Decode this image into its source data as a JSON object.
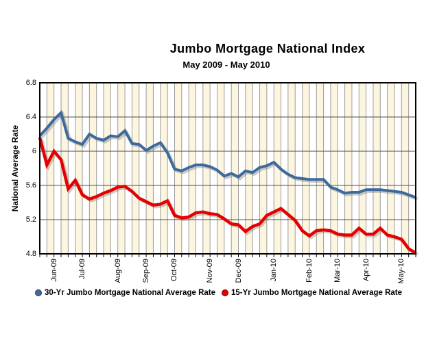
{
  "title": "Jumbo Mortgage National Index",
  "subtitle": "May 2009 - May 2010",
  "y_axis": {
    "label": "National Average Rate",
    "ticks": [
      {
        "label": "6.8",
        "value": 6.8
      },
      {
        "label": "6.4",
        "value": 6.4
      },
      {
        "label": "6",
        "value": 6.0
      },
      {
        "label": "5.6",
        "value": 5.6
      },
      {
        "label": "5.2",
        "value": 5.2
      },
      {
        "label": "4.8",
        "value": 4.8
      }
    ]
  },
  "x_axis": {
    "labels": [
      {
        "label": "Jun-09",
        "week": 2
      },
      {
        "label": "Jul-09",
        "week": 6
      },
      {
        "label": "Aug-09",
        "week": 11
      },
      {
        "label": "Sep-09",
        "week": 15
      },
      {
        "label": "Oct-09",
        "week": 19
      },
      {
        "label": "Nov-09",
        "week": 24
      },
      {
        "label": "Dec-09",
        "week": 28
      },
      {
        "label": "Jan-10",
        "week": 33
      },
      {
        "label": "Feb-10",
        "week": 38
      },
      {
        "label": "Mar-10",
        "week": 42
      },
      {
        "label": "Apr-10",
        "week": 46
      },
      {
        "label": "May-10",
        "week": 51
      }
    ]
  },
  "legend": [
    {
      "label": "30-Yr Jumbo Mortgage National Average Rate",
      "color": "#44699B",
      "rim": "#1F3A5F"
    },
    {
      "label": "15-Yr Jumbo Mortgage National Average Rate",
      "color": "#E60000",
      "rim": "#7E0000"
    }
  ],
  "colors": {
    "series_30yr": "#3C6A9D",
    "series_15yr": "#E60000",
    "plot_stripe_even": "#FFFFFF",
    "plot_stripe_odd": "#FCF5E0",
    "vertical_grid": "#9B9B9B",
    "horizontal_grid": "#4D4D4D",
    "border": "#000000",
    "shadow": "rgba(128,128,128,0.40)"
  },
  "chart_data": {
    "type": "line",
    "title": "Jumbo Mortgage National Index",
    "subtitle": "May 2009 - May 2010",
    "xlabel": "",
    "ylabel": "National Average Rate",
    "ylim": [
      4.8,
      6.8
    ],
    "y_ticks": [
      6.8,
      6.4,
      6.0,
      5.6,
      5.2,
      4.8
    ],
    "x_unit": "weekly observations, May 2009 through May 2010",
    "n_points": 54,
    "x_tick_labels": [
      "Jun-09",
      "Jul-09",
      "Aug-09",
      "Sep-09",
      "Oct-09",
      "Nov-09",
      "Dec-09",
      "Jan-10",
      "Feb-10",
      "Mar-10",
      "Apr-10",
      "May-10"
    ],
    "grid": true,
    "legend_position": "bottom",
    "series": [
      {
        "name": "30-Yr Jumbo Mortgage National Average Rate",
        "color": "#3C6A9D",
        "values": [
          6.18,
          6.27,
          6.37,
          6.45,
          6.15,
          6.11,
          6.08,
          6.2,
          6.15,
          6.13,
          6.18,
          6.17,
          6.24,
          6.09,
          6.08,
          6.01,
          6.06,
          6.1,
          5.98,
          5.79,
          5.77,
          5.81,
          5.84,
          5.84,
          5.82,
          5.78,
          5.71,
          5.74,
          5.7,
          5.77,
          5.75,
          5.81,
          5.83,
          5.87,
          5.79,
          5.73,
          5.69,
          5.68,
          5.67,
          5.67,
          5.67,
          5.58,
          5.55,
          5.51,
          5.52,
          5.52,
          5.55,
          5.55,
          5.55,
          5.54,
          5.53,
          5.52,
          5.49,
          5.46
        ]
      },
      {
        "name": "15-Yr Jumbo Mortgage National Average Rate",
        "color": "#E60000",
        "values": [
          6.16,
          5.84,
          6.0,
          5.9,
          5.56,
          5.66,
          5.49,
          5.44,
          5.47,
          5.51,
          5.54,
          5.58,
          5.59,
          5.53,
          5.45,
          5.41,
          5.37,
          5.38,
          5.42,
          5.25,
          5.22,
          5.23,
          5.28,
          5.29,
          5.27,
          5.26,
          5.21,
          5.15,
          5.14,
          5.06,
          5.12,
          5.15,
          5.25,
          5.29,
          5.33,
          5.26,
          5.19,
          5.07,
          5.01,
          5.07,
          5.08,
          5.07,
          5.03,
          5.02,
          5.02,
          5.1,
          5.03,
          5.03,
          5.1,
          5.02,
          5.0,
          4.97,
          4.86,
          4.81
        ]
      }
    ]
  }
}
